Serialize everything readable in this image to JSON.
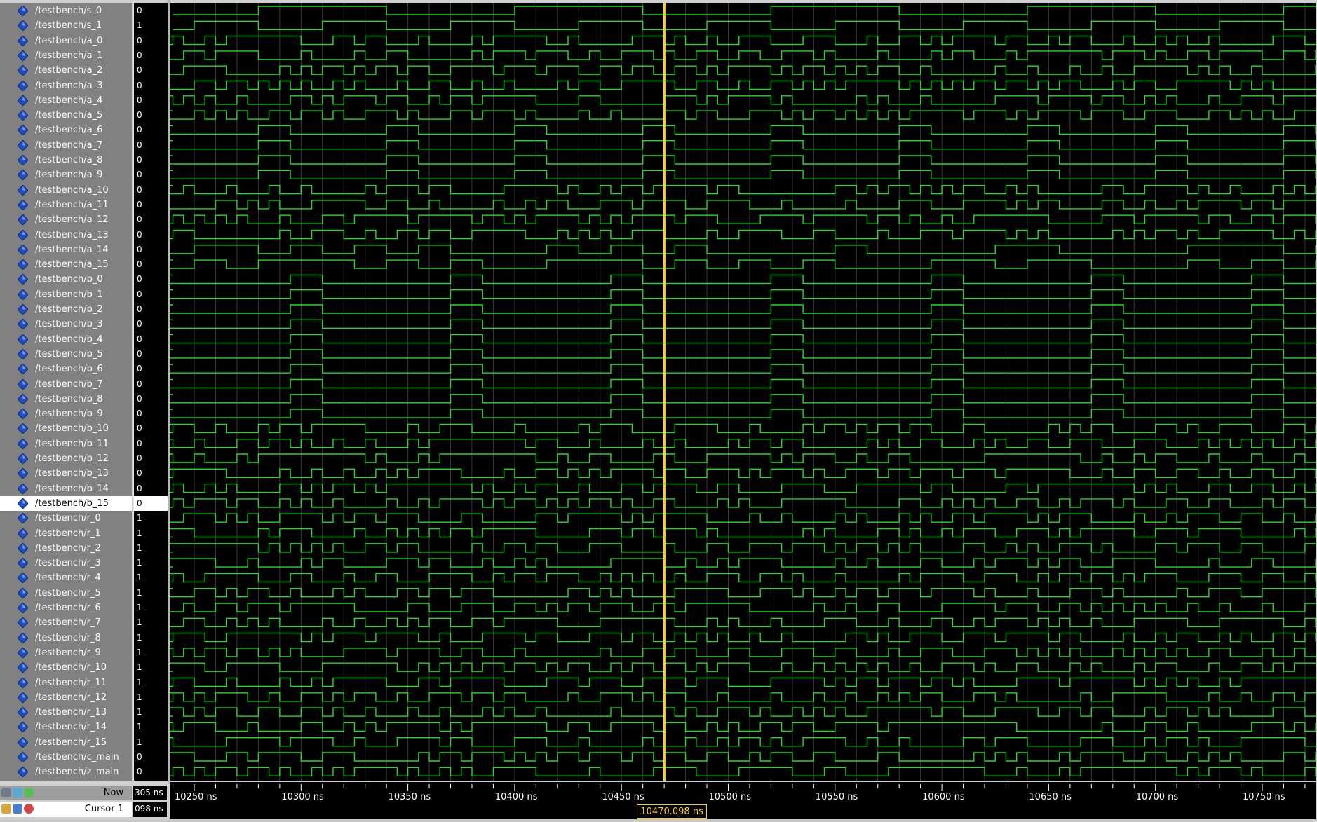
{
  "signals": [
    {
      "name": "/testbench/s_0",
      "value": "0"
    },
    {
      "name": "/testbench/s_1",
      "value": "1"
    },
    {
      "name": "/testbench/a_0",
      "value": "0"
    },
    {
      "name": "/testbench/a_1",
      "value": "0"
    },
    {
      "name": "/testbench/a_2",
      "value": "0"
    },
    {
      "name": "/testbench/a_3",
      "value": "0"
    },
    {
      "name": "/testbench/a_4",
      "value": "0"
    },
    {
      "name": "/testbench/a_5",
      "value": "0"
    },
    {
      "name": "/testbench/a_6",
      "value": "0"
    },
    {
      "name": "/testbench/a_7",
      "value": "0"
    },
    {
      "name": "/testbench/a_8",
      "value": "0"
    },
    {
      "name": "/testbench/a_9",
      "value": "0"
    },
    {
      "name": "/testbench/a_10",
      "value": "0"
    },
    {
      "name": "/testbench/a_11",
      "value": "0"
    },
    {
      "name": "/testbench/a_12",
      "value": "0"
    },
    {
      "name": "/testbench/a_13",
      "value": "0"
    },
    {
      "name": "/testbench/a_14",
      "value": "0"
    },
    {
      "name": "/testbench/a_15",
      "value": "0"
    },
    {
      "name": "/testbench/b_0",
      "value": "0"
    },
    {
      "name": "/testbench/b_1",
      "value": "0"
    },
    {
      "name": "/testbench/b_2",
      "value": "0"
    },
    {
      "name": "/testbench/b_3",
      "value": "0"
    },
    {
      "name": "/testbench/b_4",
      "value": "0"
    },
    {
      "name": "/testbench/b_5",
      "value": "0"
    },
    {
      "name": "/testbench/b_6",
      "value": "0"
    },
    {
      "name": "/testbench/b_7",
      "value": "0"
    },
    {
      "name": "/testbench/b_8",
      "value": "0"
    },
    {
      "name": "/testbench/b_9",
      "value": "0"
    },
    {
      "name": "/testbench/b_10",
      "value": "0"
    },
    {
      "name": "/testbench/b_11",
      "value": "0"
    },
    {
      "name": "/testbench/b_12",
      "value": "0"
    },
    {
      "name": "/testbench/b_13",
      "value": "0"
    },
    {
      "name": "/testbench/b_14",
      "value": "0"
    },
    {
      "name": "/testbench/b_15",
      "value": "0"
    },
    {
      "name": "/testbench/r_0",
      "value": "1"
    },
    {
      "name": "/testbench/r_1",
      "value": "1"
    },
    {
      "name": "/testbench/r_2",
      "value": "1"
    },
    {
      "name": "/testbench/r_3",
      "value": "1"
    },
    {
      "name": "/testbench/r_4",
      "value": "1"
    },
    {
      "name": "/testbench/r_5",
      "value": "1"
    },
    {
      "name": "/testbench/r_6",
      "value": "1"
    },
    {
      "name": "/testbench/r_7",
      "value": "1"
    },
    {
      "name": "/testbench/r_8",
      "value": "1"
    },
    {
      "name": "/testbench/r_9",
      "value": "1"
    },
    {
      "name": "/testbench/r_10",
      "value": "1"
    },
    {
      "name": "/testbench/r_11",
      "value": "1"
    },
    {
      "name": "/testbench/r_12",
      "value": "1"
    },
    {
      "name": "/testbench/r_13",
      "value": "1"
    },
    {
      "name": "/testbench/r_14",
      "value": "1"
    },
    {
      "name": "/testbench/r_15",
      "value": "1"
    },
    {
      "name": "/testbench/c_main",
      "value": "0"
    },
    {
      "name": "/testbench/z_main",
      "value": "0"
    }
  ],
  "selected_signal": "/testbench/b_15",
  "status": {
    "now_label": "Now",
    "now_value": "305 ns",
    "cursor_label": "Cursor 1",
    "cursor_value": "098 ns"
  },
  "timeline": {
    "ticks": [
      "10250 ns",
      "10300 ns",
      "10350 ns",
      "10400 ns",
      "10450 ns",
      "10500 ns",
      "10550 ns",
      "10600 ns",
      "10650 ns",
      "10700 ns",
      "10750 ns"
    ],
    "cursor_time": "10470.098 ns"
  },
  "colors": {
    "waveform": "#22dd22",
    "cursor": "#ffd21f",
    "grid": "#3a3a3a",
    "signal_icon": "#1f4fbf"
  },
  "icons": {
    "signal_icon": "diamond-icon",
    "status_icons": [
      "tools-icon",
      "add-icon",
      "lock-icon",
      "edit-icon",
      "remove-icon"
    ]
  }
}
